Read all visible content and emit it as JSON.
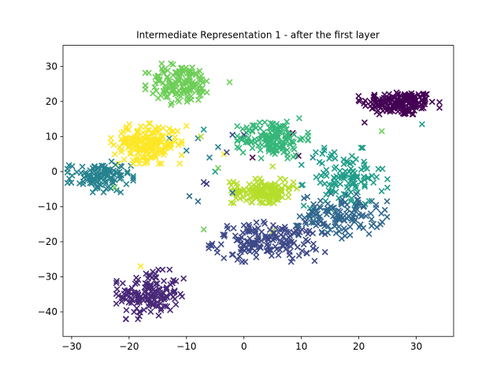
{
  "chart_data": {
    "type": "scatter",
    "title": "Intermediate Representation 1 - after the first layer",
    "xlabel": "",
    "ylabel": "",
    "xlim": [
      -31.5,
      36.5
    ],
    "ylim": [
      -47,
      36
    ],
    "x_ticks": [
      -30,
      -20,
      -10,
      0,
      10,
      20,
      30
    ],
    "y_ticks": [
      -40,
      -30,
      -20,
      -10,
      0,
      10,
      20,
      30
    ],
    "marker": "x",
    "grid": false,
    "legend": "none",
    "colormap": "viridis",
    "clusters": [
      {
        "color": "#440154",
        "center": [
          27,
          19.5
        ],
        "spread": [
          3.2,
          1.8
        ],
        "count": 170
      },
      {
        "color": "#482878",
        "center": [
          -16.5,
          -35
        ],
        "spread": [
          2.6,
          3.2
        ],
        "count": 150
      },
      {
        "color": "#3e4989",
        "center": [
          4,
          -20
        ],
        "spread": [
          4.6,
          2.6
        ],
        "count": 170
      },
      {
        "color": "#31688e",
        "center": [
          17,
          -12.5
        ],
        "spread": [
          3.6,
          3.0
        ],
        "count": 130
      },
      {
        "color": "#26828e",
        "center": [
          -25,
          -1.5
        ],
        "spread": [
          2.6,
          2.0
        ],
        "count": 110
      },
      {
        "color": "#1f9e89",
        "center": [
          17.5,
          -2
        ],
        "spread": [
          3.4,
          4.0
        ],
        "count": 110
      },
      {
        "color": "#35b779",
        "center": [
          5,
          9.5
        ],
        "spread": [
          2.8,
          2.6
        ],
        "count": 150
      },
      {
        "color": "#6ece58",
        "center": [
          -11,
          25
        ],
        "spread": [
          2.8,
          2.8
        ],
        "count": 150
      },
      {
        "color": "#b5de2b",
        "center": [
          3.5,
          -5.5
        ],
        "spread": [
          2.6,
          1.6
        ],
        "count": 150
      },
      {
        "color": "#fde725",
        "center": [
          -17,
          8
        ],
        "spread": [
          2.8,
          2.6
        ],
        "count": 200
      }
    ],
    "outliers": [
      {
        "x": 9.5,
        "y": 4.5,
        "color": "#440154"
      },
      {
        "x": 1.5,
        "y": 4,
        "color": "#440154"
      },
      {
        "x": 8.5,
        "y": 11,
        "color": "#440154"
      },
      {
        "x": 21,
        "y": 14,
        "color": "#440154"
      },
      {
        "x": -6.5,
        "y": -3.5,
        "color": "#482878"
      },
      {
        "x": -10.5,
        "y": -30.5,
        "color": "#482878"
      },
      {
        "x": -3,
        "y": 5.5,
        "color": "#3e4989"
      },
      {
        "x": -2,
        "y": 10.5,
        "color": "#3e4989"
      },
      {
        "x": 0,
        "y": 10.5,
        "color": "#3e4989"
      },
      {
        "x": -7,
        "y": -3,
        "color": "#3e4989"
      },
      {
        "x": -9.5,
        "y": -7,
        "color": "#31688e"
      },
      {
        "x": -8,
        "y": -8.5,
        "color": "#31688e"
      },
      {
        "x": -2,
        "y": -6,
        "color": "#31688e"
      },
      {
        "x": 23,
        "y": -9.5,
        "color": "#31688e"
      },
      {
        "x": -13,
        "y": 9.5,
        "color": "#26828e"
      },
      {
        "x": -6,
        "y": 4,
        "color": "#26828e"
      },
      {
        "x": -8,
        "y": 9.5,
        "color": "#26828e"
      },
      {
        "x": -10,
        "y": 6,
        "color": "#26828e"
      },
      {
        "x": -4.5,
        "y": 7,
        "color": "#26828e"
      },
      {
        "x": 12,
        "y": 4,
        "color": "#26828e"
      },
      {
        "x": 21,
        "y": 2,
        "color": "#1f9e89"
      },
      {
        "x": 12.5,
        "y": 5.5,
        "color": "#1f9e89"
      },
      {
        "x": 31,
        "y": 13.5,
        "color": "#1f9e89"
      },
      {
        "x": -7,
        "y": 12,
        "color": "#1f9e89"
      },
      {
        "x": -5,
        "y": 0,
        "color": "#1f9e89"
      },
      {
        "x": -2.5,
        "y": 25.5,
        "color": "#6ece58"
      },
      {
        "x": -7,
        "y": -16.5,
        "color": "#6ece58"
      },
      {
        "x": 24,
        "y": 11.5,
        "color": "#6ece58"
      },
      {
        "x": -4.5,
        "y": 1,
        "color": "#6ece58"
      },
      {
        "x": -22.5,
        "y": -4.5,
        "color": "#6ece58"
      },
      {
        "x": -2.5,
        "y": -3,
        "color": "#b5de2b"
      },
      {
        "x": 5,
        "y": 1.5,
        "color": "#b5de2b"
      },
      {
        "x": 5,
        "y": -17,
        "color": "#b5de2b"
      },
      {
        "x": -7.5,
        "y": 10,
        "color": "#b5de2b"
      },
      {
        "x": -3.5,
        "y": 5,
        "color": "#fde725"
      },
      {
        "x": -18,
        "y": -27,
        "color": "#fde725"
      },
      {
        "x": -10,
        "y": 13,
        "color": "#fde725"
      }
    ]
  }
}
